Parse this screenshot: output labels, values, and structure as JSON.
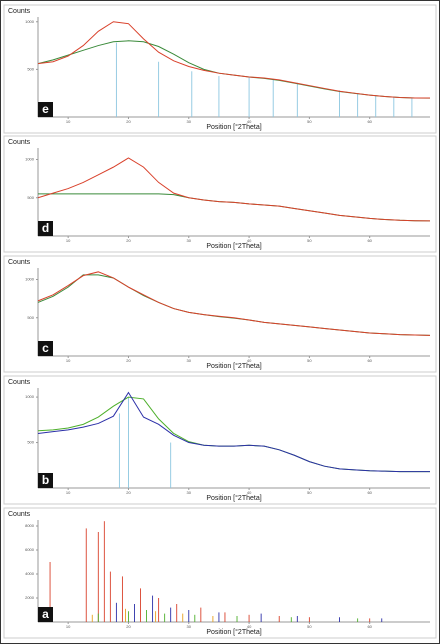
{
  "chart_data": [
    {
      "type": "line",
      "label": "e",
      "ylabel": "Counts",
      "xlabel": "Position [°2Theta]",
      "xlim": [
        5,
        70
      ],
      "ylim": [
        0,
        1050
      ],
      "xticks": [
        10,
        20,
        30,
        40,
        50,
        60
      ],
      "yticks": [
        500,
        1000
      ],
      "x": [
        5,
        7.5,
        10,
        12.5,
        15,
        17.5,
        20,
        22.5,
        25,
        27.5,
        30,
        32.5,
        35,
        37.5,
        40,
        42.5,
        45,
        47.5,
        50,
        52.5,
        55,
        57.5,
        60,
        62.5,
        65,
        67.5,
        70
      ],
      "series": [
        {
          "kind": "stick",
          "color": "#8cc6e0",
          "x": [
            18,
            25,
            30.5,
            35,
            40,
            44,
            48,
            55,
            58,
            61,
            64,
            67
          ],
          "values": [
            780,
            580,
            480,
            430,
            420,
            400,
            360,
            280,
            250,
            225,
            210,
            200
          ]
        },
        {
          "kind": "line",
          "color": "#3a8a3a",
          "values": [
            560,
            600,
            650,
            700,
            750,
            790,
            800,
            790,
            740,
            660,
            570,
            500,
            460,
            440,
            420,
            405,
            385,
            355,
            325,
            295,
            268,
            248,
            230,
            215,
            205,
            200,
            198
          ]
        },
        {
          "kind": "line",
          "color": "#d9412b",
          "values": [
            560,
            580,
            640,
            750,
            900,
            1000,
            980,
            820,
            680,
            590,
            530,
            490,
            460,
            440,
            420,
            410,
            390,
            360,
            330,
            300,
            270,
            250,
            230,
            215,
            205,
            200,
            200
          ]
        }
      ]
    },
    {
      "type": "line",
      "label": "d",
      "ylabel": "Counts",
      "xlabel": "Position [°2Theta]",
      "xlim": [
        5,
        70
      ],
      "ylim": [
        0,
        1150
      ],
      "xticks": [
        10,
        20,
        30,
        40,
        50,
        60
      ],
      "yticks": [
        500,
        1000
      ],
      "x": [
        5,
        7.5,
        10,
        12.5,
        15,
        17.5,
        20,
        22.5,
        25,
        27.5,
        30,
        32.5,
        35,
        37.5,
        40,
        42.5,
        45,
        47.5,
        50,
        52.5,
        55,
        57.5,
        60,
        62.5,
        65,
        67.5,
        70
      ],
      "series": [
        {
          "kind": "line",
          "color": "#3a8a3a",
          "values": [
            550,
            550,
            550,
            550,
            550,
            550,
            550,
            550,
            550,
            540,
            500,
            470,
            450,
            440,
            420,
            405,
            390,
            360,
            330,
            300,
            270,
            250,
            230,
            215,
            205,
            200,
            198
          ]
        },
        {
          "kind": "line",
          "color": "#d9412b",
          "values": [
            500,
            560,
            620,
            700,
            800,
            900,
            1020,
            900,
            700,
            560,
            500,
            470,
            450,
            440,
            420,
            405,
            390,
            360,
            330,
            300,
            270,
            250,
            230,
            215,
            205,
            200,
            198
          ]
        }
      ]
    },
    {
      "type": "line",
      "label": "c",
      "ylabel": "Counts",
      "xlabel": "Position [°2Theta]",
      "xlim": [
        5,
        70
      ],
      "ylim": [
        0,
        1150
      ],
      "xticks": [
        10,
        20,
        30,
        40,
        50,
        60
      ],
      "yticks": [
        500,
        1000
      ],
      "x": [
        5,
        7.5,
        10,
        12.5,
        15,
        17.5,
        20,
        22.5,
        25,
        27.5,
        30,
        32.5,
        35,
        37.5,
        40,
        42.5,
        45,
        47.5,
        50,
        52.5,
        55,
        57.5,
        60,
        62.5,
        65,
        67.5,
        70
      ],
      "series": [
        {
          "kind": "line",
          "color": "#3a8a3a",
          "values": [
            700,
            780,
            900,
            1060,
            1060,
            1020,
            900,
            790,
            700,
            620,
            570,
            540,
            515,
            495,
            470,
            440,
            420,
            400,
            380,
            360,
            340,
            320,
            300,
            290,
            280,
            275,
            270
          ]
        },
        {
          "kind": "line",
          "color": "#d9412b",
          "values": [
            720,
            800,
            920,
            1050,
            1100,
            1020,
            900,
            800,
            700,
            620,
            570,
            540,
            520,
            500,
            470,
            440,
            420,
            400,
            380,
            360,
            340,
            320,
            300,
            290,
            280,
            275,
            270
          ]
        }
      ]
    },
    {
      "type": "line",
      "label": "b",
      "ylabel": "Counts",
      "xlabel": "Position [°2Theta]",
      "xlim": [
        5,
        70
      ],
      "ylim": [
        0,
        1100
      ],
      "xticks": [
        10,
        20,
        30,
        40,
        50,
        60
      ],
      "yticks": [
        500,
        1000
      ],
      "x": [
        5,
        7.5,
        10,
        12.5,
        15,
        17.5,
        20,
        22.5,
        25,
        27.5,
        30,
        32.5,
        35,
        37.5,
        40,
        42.5,
        45,
        47.5,
        50,
        52.5,
        55,
        57.5,
        60,
        62.5,
        65,
        67.5,
        70
      ],
      "series": [
        {
          "kind": "stick",
          "color": "#8cc6e0",
          "x": [
            18.5,
            20,
            27
          ],
          "values": [
            820,
            1000,
            500
          ]
        },
        {
          "kind": "line",
          "color": "#4caf2a",
          "values": [
            630,
            640,
            660,
            700,
            780,
            900,
            1000,
            980,
            760,
            600,
            510,
            470,
            460,
            460,
            470,
            460,
            420,
            360,
            290,
            240,
            210,
            200,
            190,
            185,
            180,
            180,
            180
          ]
        },
        {
          "kind": "line",
          "color": "#2b2fa8",
          "values": [
            600,
            620,
            640,
            670,
            710,
            790,
            1050,
            780,
            700,
            580,
            500,
            470,
            460,
            460,
            470,
            460,
            420,
            360,
            290,
            240,
            210,
            200,
            190,
            185,
            180,
            180,
            180
          ]
        }
      ]
    },
    {
      "type": "stick",
      "label": "a",
      "ylabel": "Counts",
      "xlabel": "Position [°2Theta]",
      "xlim": [
        5,
        70
      ],
      "ylim": [
        0,
        8500
      ],
      "xticks": [
        10,
        20,
        30,
        40,
        50,
        60
      ],
      "yticks": [
        2000,
        4000,
        6000,
        8000
      ],
      "series": [
        {
          "kind": "stick",
          "color": "#d9412b",
          "x": [
            7,
            13,
            15,
            16,
            17,
            19,
            22,
            25,
            28,
            32,
            36,
            40,
            45,
            50,
            60
          ],
          "values": [
            5000,
            7800,
            7500,
            8400,
            4200,
            3800,
            2800,
            2000,
            1500,
            1200,
            800,
            600,
            500,
            400,
            300
          ]
        },
        {
          "kind": "stick",
          "color": "#2b2fa8",
          "x": [
            18,
            21,
            24,
            27,
            30,
            35,
            42,
            48,
            55,
            62
          ],
          "values": [
            1600,
            1500,
            2200,
            1200,
            1000,
            800,
            700,
            500,
            400,
            300
          ]
        },
        {
          "kind": "stick",
          "color": "#4caf2a",
          "x": [
            15,
            20,
            23,
            26,
            31,
            38,
            47,
            58
          ],
          "values": [
            700,
            900,
            1000,
            700,
            600,
            500,
            400,
            300
          ]
        },
        {
          "kind": "stick",
          "color": "#e8a020",
          "x": [
            14,
            19.5,
            24.5,
            29,
            34
          ],
          "values": [
            600,
            1100,
            900,
            700,
            500
          ]
        }
      ]
    }
  ]
}
